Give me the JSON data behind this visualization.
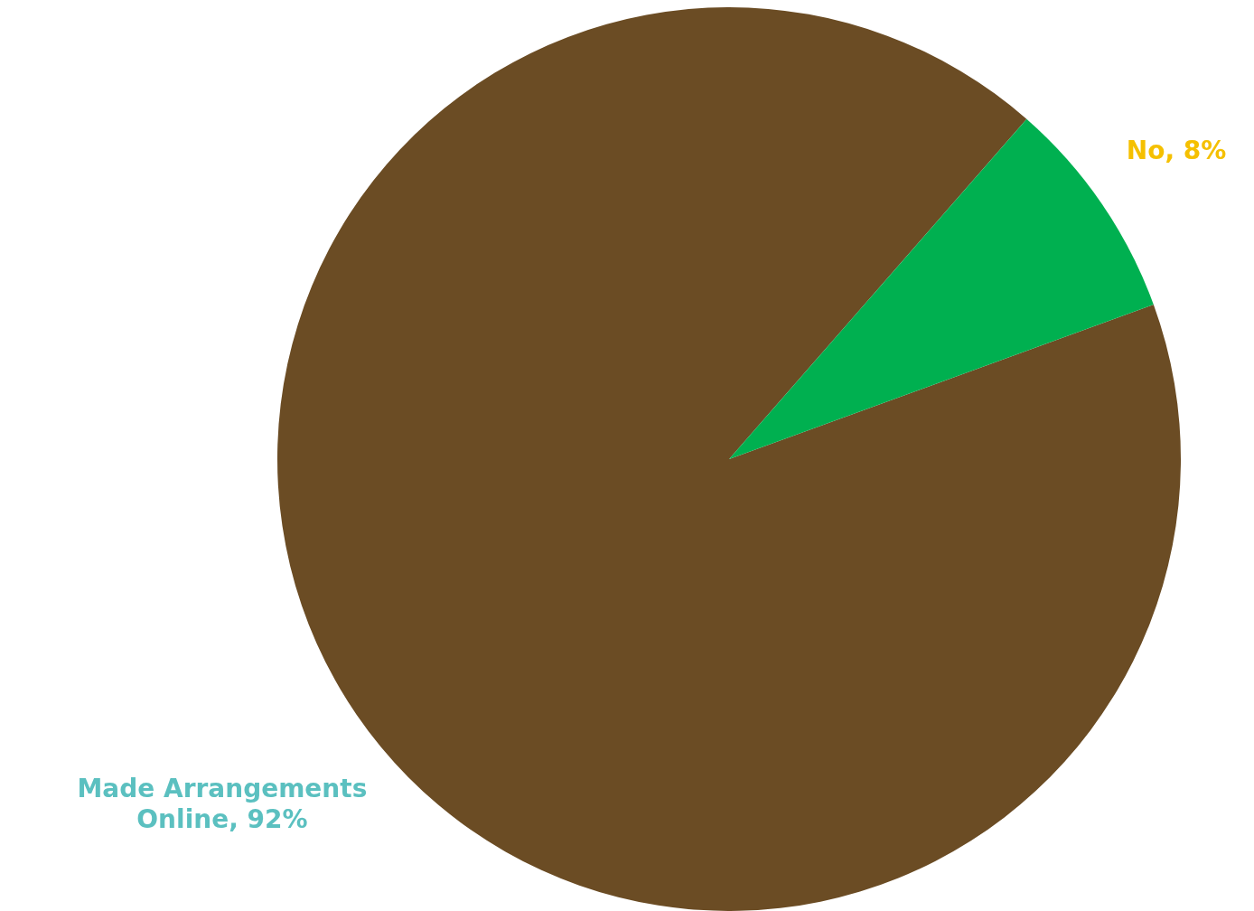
{
  "chart_data": {
    "type": "pie",
    "categories": [
      "Made Arrangements Online",
      "No"
    ],
    "values": [
      92,
      8
    ],
    "colors": [
      "#6b4c24",
      "#00b050"
    ],
    "value_labels": [
      "92%",
      "8%"
    ]
  }
}
